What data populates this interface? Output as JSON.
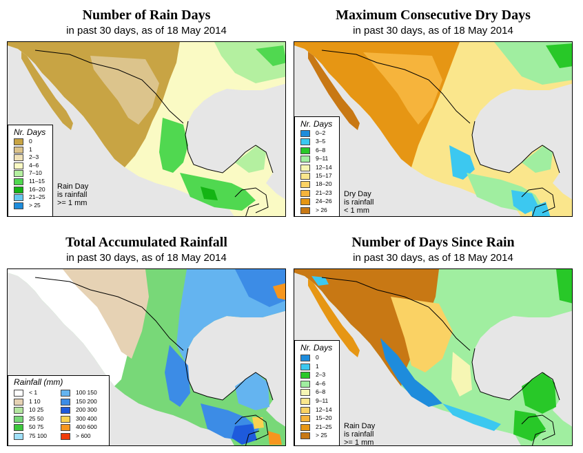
{
  "panels": [
    {
      "id": "rain-days",
      "title": "Number of Rain Days",
      "subtitle": "in past 30 days, as of  18 May 2014",
      "legend_title": "Nr. Days",
      "legend": [
        {
          "label": "0",
          "color": "#c8a444"
        },
        {
          "label": "1",
          "color": "#dcc48c"
        },
        {
          "label": "2–3",
          "color": "#f0e2b8"
        },
        {
          "label": "4–6",
          "color": "#fafac4"
        },
        {
          "label": "7–10",
          "color": "#b4f0a0"
        },
        {
          "label": "11–15",
          "color": "#50d850"
        },
        {
          "label": "16–20",
          "color": "#14b414"
        },
        {
          "label": "21–25",
          "color": "#64c8f0"
        },
        {
          "label": "> 25",
          "color": "#1e8cdc"
        }
      ],
      "note": [
        "Rain Day",
        "is rainfall",
        ">= 1 mm"
      ]
    },
    {
      "id": "max-dry-days",
      "title": "Maximum Consecutive Dry Days",
      "subtitle": "in past 30 days, as of  18 May 2014",
      "legend_title": "Nr. Days",
      "legend": [
        {
          "label": "0–2",
          "color": "#1e8cdc"
        },
        {
          "label": "3–5",
          "color": "#3cc8f0"
        },
        {
          "label": "6–8",
          "color": "#28c828"
        },
        {
          "label": "9–11",
          "color": "#a0eea0"
        },
        {
          "label": "12–14",
          "color": "#f6f6b4"
        },
        {
          "label": "15–17",
          "color": "#fae68c"
        },
        {
          "label": "18–20",
          "color": "#fad264"
        },
        {
          "label": "21–23",
          "color": "#f6b43c"
        },
        {
          "label": "24–26",
          "color": "#e69614"
        },
        {
          "label": "> 26",
          "color": "#c87814"
        }
      ],
      "note": [
        "Dry Day",
        "is rainfall",
        "< 1 mm"
      ]
    },
    {
      "id": "total-rainfall",
      "title": "Total Accumulated Rainfall",
      "subtitle": "in past 30 days, as of  18 May 2014",
      "legend_title": "Rainfall (mm)",
      "legend": [
        {
          "label": "< 1",
          "color": "#ffffff"
        },
        {
          "label": "1    10",
          "color": "#e6d2b4"
        },
        {
          "label": "10    25",
          "color": "#b4e6a0"
        },
        {
          "label": "25    50",
          "color": "#78d878"
        },
        {
          "label": "50    75",
          "color": "#3cc83c"
        },
        {
          "label": "75   100",
          "color": "#a0e0f8"
        },
        {
          "label": "100   150",
          "color": "#64b4f0"
        },
        {
          "label": "150   200",
          "color": "#3c8ce6"
        },
        {
          "label": "200   300",
          "color": "#1e5adc"
        },
        {
          "label": "300   400",
          "color": "#fad250"
        },
        {
          "label": "400   600",
          "color": "#f6961e"
        },
        {
          "label": "> 600",
          "color": "#f03c0a"
        }
      ],
      "note": []
    },
    {
      "id": "days-since-rain",
      "title": "Number of Days Since Rain",
      "subtitle": "in past 30 days, as of  18 May 2014",
      "legend_title": "Nr. Days",
      "legend": [
        {
          "label": "0",
          "color": "#1e8cdc"
        },
        {
          "label": "1",
          "color": "#3cc8f0"
        },
        {
          "label": "2–3",
          "color": "#28c828"
        },
        {
          "label": "4–6",
          "color": "#a0eea0"
        },
        {
          "label": "6–8",
          "color": "#f6f6b4"
        },
        {
          "label": "9–11",
          "color": "#fae68c"
        },
        {
          "label": "12–14",
          "color": "#fad264"
        },
        {
          "label": "15–20",
          "color": "#f6b43c"
        },
        {
          "label": "21–25",
          "color": "#e69614"
        },
        {
          "label": "> 25",
          "color": "#c87814"
        }
      ],
      "note": [
        "Rain Day",
        "is rainfall",
        ">= 1 mm"
      ]
    }
  ],
  "colors": {
    "ocean": "#e6e6e6",
    "border": "#000000"
  }
}
